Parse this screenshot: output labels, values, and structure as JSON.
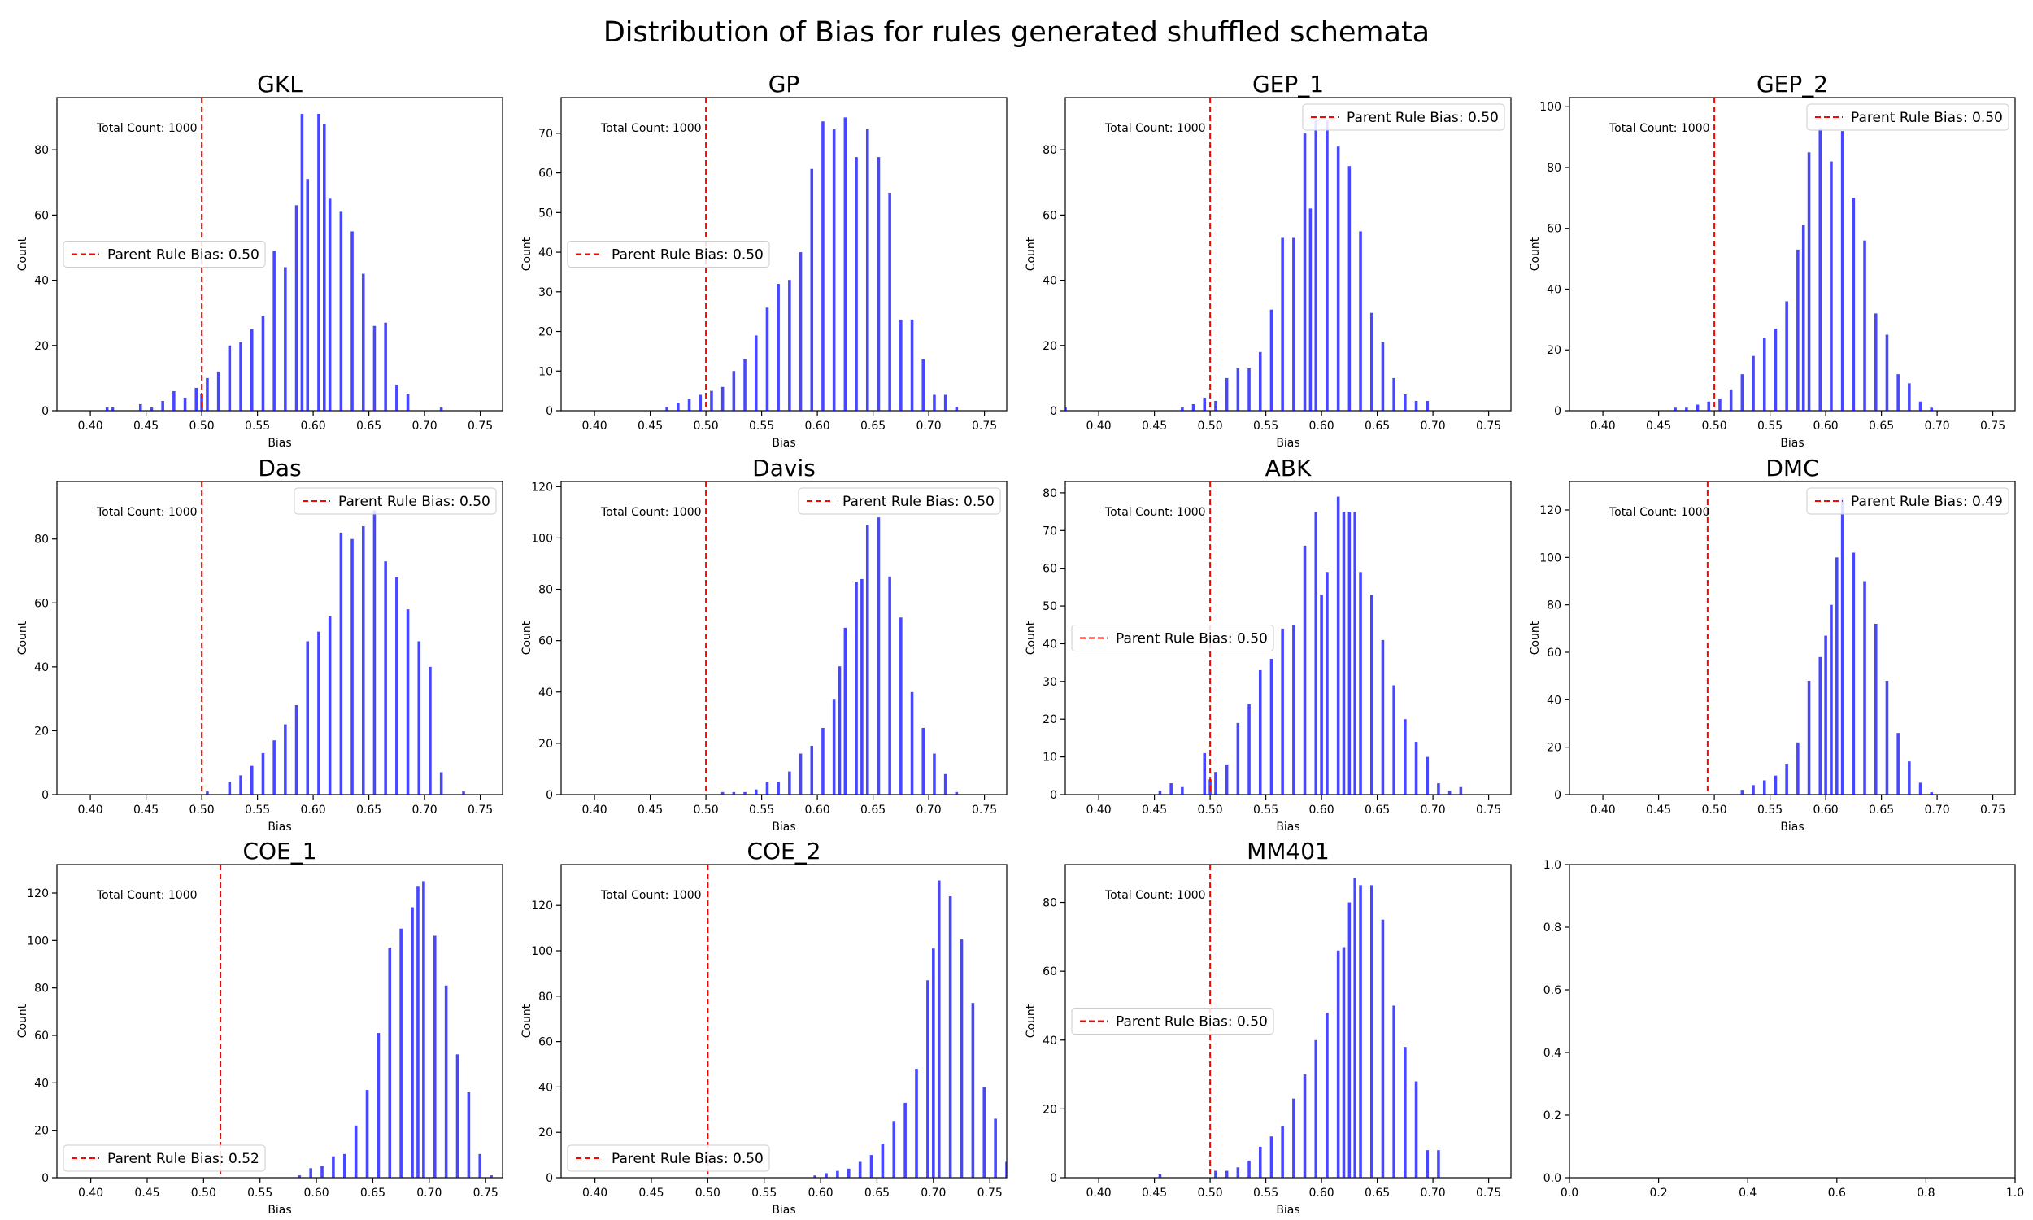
{
  "figure": {
    "title": "Distribution of Bias for rules generated shuffled schemata"
  },
  "chart_data": [
    {
      "type": "bar",
      "title": "GKL",
      "xlabel": "Bias",
      "ylabel": "Count",
      "xlim": [
        0.37,
        0.77
      ],
      "ylim": [
        0,
        96
      ],
      "xticks": [
        0.4,
        0.45,
        0.5,
        0.55,
        0.6,
        0.65,
        0.7,
        0.75
      ],
      "yticks": [
        0,
        20,
        40,
        60,
        80
      ],
      "annotation": "Total Count: 1000",
      "legend": {
        "label": "Parent Rule Bias: 0.50",
        "placement": "center-left"
      },
      "parent_bias": 0.5,
      "bar_color": "#0000ff",
      "x": [
        0.415,
        0.42,
        0.445,
        0.455,
        0.465,
        0.475,
        0.485,
        0.495,
        0.5,
        0.505,
        0.515,
        0.525,
        0.535,
        0.545,
        0.555,
        0.565,
        0.575,
        0.585,
        0.59,
        0.595,
        0.605,
        0.61,
        0.615,
        0.625,
        0.635,
        0.645,
        0.655,
        0.665,
        0.675,
        0.685,
        0.715
      ],
      "values": [
        1,
        1,
        2,
        1,
        3,
        6,
        4,
        7,
        5,
        10,
        12,
        20,
        21,
        25,
        29,
        49,
        44,
        63,
        91,
        71,
        91,
        88,
        65,
        61,
        55,
        42,
        26,
        27,
        8,
        5,
        1
      ]
    },
    {
      "type": "bar",
      "title": "GP",
      "xlabel": "Bias",
      "ylabel": "Count",
      "xlim": [
        0.37,
        0.77
      ],
      "ylim": [
        0,
        79
      ],
      "xticks": [
        0.4,
        0.45,
        0.5,
        0.55,
        0.6,
        0.65,
        0.7,
        0.75
      ],
      "yticks": [
        0,
        10,
        20,
        30,
        40,
        50,
        60,
        70
      ],
      "annotation": "Total Count: 1000",
      "legend": {
        "label": "Parent Rule Bias: 0.50",
        "placement": "center-left"
      },
      "parent_bias": 0.5,
      "bar_color": "#0000ff",
      "x": [
        0.465,
        0.475,
        0.485,
        0.495,
        0.505,
        0.515,
        0.525,
        0.535,
        0.545,
        0.555,
        0.565,
        0.575,
        0.585,
        0.595,
        0.605,
        0.615,
        0.625,
        0.635,
        0.645,
        0.655,
        0.665,
        0.675,
        0.685,
        0.695,
        0.705,
        0.715,
        0.725
      ],
      "values": [
        1,
        2,
        3,
        4,
        5,
        6,
        10,
        13,
        19,
        26,
        32,
        33,
        40,
        61,
        73,
        71,
        74,
        64,
        71,
        64,
        55,
        23,
        23,
        13,
        4,
        4,
        1
      ]
    },
    {
      "type": "bar",
      "title": "GEP_1",
      "xlabel": "Bias",
      "ylabel": "Count",
      "xlim": [
        0.37,
        0.77
      ],
      "ylim": [
        0,
        96
      ],
      "xticks": [
        0.4,
        0.45,
        0.5,
        0.55,
        0.6,
        0.65,
        0.7,
        0.75
      ],
      "yticks": [
        0,
        20,
        40,
        60,
        80
      ],
      "annotation": "Total Count: 1000",
      "legend": {
        "label": "Parent Rule Bias: 0.50",
        "placement": "upper-right"
      },
      "parent_bias": 0.5,
      "bar_color": "#0000ff",
      "x": [
        0.37,
        0.475,
        0.485,
        0.495,
        0.505,
        0.515,
        0.525,
        0.535,
        0.545,
        0.555,
        0.565,
        0.575,
        0.585,
        0.59,
        0.595,
        0.605,
        0.615,
        0.625,
        0.635,
        0.645,
        0.655,
        0.665,
        0.675,
        0.685,
        0.695
      ],
      "values": [
        1,
        1,
        2,
        4,
        3,
        10,
        13,
        13,
        18,
        31,
        53,
        53,
        85,
        62,
        89,
        89,
        81,
        75,
        55,
        30,
        21,
        10,
        5,
        3,
        3
      ]
    },
    {
      "type": "bar",
      "title": "GEP_2",
      "xlabel": "Bias",
      "ylabel": "Count",
      "xlim": [
        0.37,
        0.77
      ],
      "ylim": [
        0,
        103
      ],
      "xticks": [
        0.4,
        0.45,
        0.5,
        0.55,
        0.6,
        0.65,
        0.7,
        0.75
      ],
      "yticks": [
        0,
        20,
        40,
        60,
        80,
        100
      ],
      "annotation": "Total Count: 1000",
      "legend": {
        "label": "Parent Rule Bias: 0.50",
        "placement": "upper-right"
      },
      "parent_bias": 0.5,
      "bar_color": "#0000ff",
      "x": [
        0.465,
        0.475,
        0.485,
        0.495,
        0.505,
        0.515,
        0.525,
        0.535,
        0.545,
        0.555,
        0.565,
        0.575,
        0.58,
        0.585,
        0.595,
        0.605,
        0.615,
        0.625,
        0.635,
        0.645,
        0.655,
        0.665,
        0.675,
        0.685,
        0.695
      ],
      "values": [
        1,
        1,
        2,
        3,
        4,
        7,
        12,
        18,
        24,
        27,
        36,
        53,
        61,
        85,
        93,
        82,
        92,
        70,
        56,
        32,
        25,
        12,
        9,
        3,
        1
      ]
    },
    {
      "type": "bar",
      "title": "Das",
      "xlabel": "Bias",
      "ylabel": "Count",
      "xlim": [
        0.37,
        0.77
      ],
      "ylim": [
        0,
        98
      ],
      "xticks": [
        0.4,
        0.45,
        0.5,
        0.55,
        0.6,
        0.65,
        0.7,
        0.75
      ],
      "yticks": [
        0,
        20,
        40,
        60,
        80
      ],
      "annotation": "Total Count: 1000",
      "legend": {
        "label": "Parent Rule Bias: 0.50",
        "placement": "upper-right"
      },
      "parent_bias": 0.5,
      "bar_color": "#0000ff",
      "x": [
        0.505,
        0.525,
        0.535,
        0.545,
        0.555,
        0.565,
        0.575,
        0.585,
        0.595,
        0.605,
        0.615,
        0.625,
        0.635,
        0.645,
        0.655,
        0.665,
        0.675,
        0.685,
        0.695,
        0.705,
        0.715,
        0.735
      ],
      "values": [
        1,
        4,
        6,
        9,
        13,
        17,
        22,
        28,
        48,
        51,
        56,
        82,
        80,
        84,
        89,
        73,
        68,
        58,
        48,
        40,
        7,
        1
      ]
    },
    {
      "type": "bar",
      "title": "Davis",
      "xlabel": "Bias",
      "ylabel": "Count",
      "xlim": [
        0.37,
        0.77
      ],
      "ylim": [
        0,
        122
      ],
      "xticks": [
        0.4,
        0.45,
        0.5,
        0.55,
        0.6,
        0.65,
        0.7,
        0.75
      ],
      "yticks": [
        0,
        20,
        40,
        60,
        80,
        100,
        120
      ],
      "annotation": "Total Count: 1000",
      "legend": {
        "label": "Parent Rule Bias: 0.50",
        "placement": "upper-right"
      },
      "parent_bias": 0.5,
      "bar_color": "#0000ff",
      "x": [
        0.515,
        0.525,
        0.535,
        0.545,
        0.555,
        0.565,
        0.575,
        0.585,
        0.595,
        0.605,
        0.615,
        0.62,
        0.625,
        0.635,
        0.64,
        0.645,
        0.655,
        0.665,
        0.675,
        0.685,
        0.695,
        0.705,
        0.715,
        0.725
      ],
      "values": [
        1,
        1,
        1,
        2,
        5,
        5,
        9,
        16,
        19,
        26,
        37,
        50,
        65,
        83,
        84,
        105,
        108,
        85,
        69,
        40,
        26,
        16,
        8,
        1
      ]
    },
    {
      "type": "bar",
      "title": "ABK",
      "xlabel": "Bias",
      "ylabel": "Count",
      "xlim": [
        0.37,
        0.77
      ],
      "ylim": [
        0,
        83
      ],
      "xticks": [
        0.4,
        0.45,
        0.5,
        0.55,
        0.6,
        0.65,
        0.7,
        0.75
      ],
      "yticks": [
        0,
        10,
        20,
        30,
        40,
        50,
        60,
        70,
        80
      ],
      "annotation": "Total Count: 1000",
      "legend": {
        "label": "Parent Rule Bias: 0.50",
        "placement": "center-left"
      },
      "parent_bias": 0.5,
      "bar_color": "#0000ff",
      "x": [
        0.455,
        0.465,
        0.475,
        0.495,
        0.5,
        0.505,
        0.515,
        0.525,
        0.535,
        0.545,
        0.555,
        0.565,
        0.575,
        0.585,
        0.595,
        0.6,
        0.605,
        0.615,
        0.62,
        0.625,
        0.63,
        0.635,
        0.645,
        0.655,
        0.665,
        0.675,
        0.685,
        0.695,
        0.705,
        0.715,
        0.725
      ],
      "values": [
        1,
        3,
        2,
        11,
        4,
        6,
        8,
        19,
        24,
        33,
        36,
        44,
        45,
        66,
        75,
        53,
        59,
        79,
        75,
        75,
        75,
        59,
        53,
        41,
        29,
        20,
        14,
        10,
        3,
        1,
        2
      ]
    },
    {
      "type": "bar",
      "title": "DMC",
      "xlabel": "Bias",
      "ylabel": "Count",
      "xlim": [
        0.37,
        0.77
      ],
      "ylim": [
        0,
        132
      ],
      "xticks": [
        0.4,
        0.45,
        0.5,
        0.55,
        0.6,
        0.65,
        0.7,
        0.75
      ],
      "yticks": [
        0,
        20,
        40,
        60,
        80,
        100,
        120
      ],
      "annotation": "Total Count: 1000",
      "legend": {
        "label": "Parent Rule Bias: 0.49",
        "placement": "upper-right"
      },
      "parent_bias": 0.494,
      "bar_color": "#0000ff",
      "x": [
        0.525,
        0.535,
        0.545,
        0.555,
        0.565,
        0.575,
        0.585,
        0.595,
        0.6,
        0.605,
        0.61,
        0.615,
        0.625,
        0.635,
        0.645,
        0.655,
        0.665,
        0.675,
        0.685,
        0.695
      ],
      "values": [
        2,
        4,
        6,
        8,
        13,
        22,
        48,
        58,
        67,
        80,
        100,
        125,
        102,
        90,
        72,
        48,
        26,
        14,
        5,
        1
      ]
    },
    {
      "type": "bar",
      "title": "COE_1",
      "xlabel": "Bias",
      "ylabel": "Count",
      "xlim": [
        0.37,
        0.765
      ],
      "ylim": [
        0,
        132
      ],
      "xticks": [
        0.4,
        0.45,
        0.5,
        0.55,
        0.6,
        0.65,
        0.7,
        0.75
      ],
      "yticks": [
        0,
        20,
        40,
        60,
        80,
        100,
        120
      ],
      "annotation": "Total Count: 1000",
      "legend": {
        "label": "Parent Rule Bias: 0.52",
        "placement": "lower-left"
      },
      "parent_bias": 0.515,
      "bar_color": "#0000ff",
      "x": [
        0.585,
        0.595,
        0.605,
        0.615,
        0.625,
        0.635,
        0.645,
        0.655,
        0.665,
        0.675,
        0.685,
        0.69,
        0.695,
        0.705,
        0.715,
        0.725,
        0.735,
        0.745,
        0.755
      ],
      "values": [
        1,
        4,
        5,
        9,
        10,
        22,
        37,
        61,
        97,
        105,
        114,
        123,
        125,
        102,
        81,
        52,
        36,
        10,
        1
      ]
    },
    {
      "type": "bar",
      "title": "COE_2",
      "xlabel": "Bias",
      "ylabel": "Count",
      "xlim": [
        0.37,
        0.765
      ],
      "ylim": [
        0,
        138
      ],
      "xticks": [
        0.4,
        0.45,
        0.5,
        0.55,
        0.6,
        0.65,
        0.7,
        0.75
      ],
      "yticks": [
        0,
        20,
        40,
        60,
        80,
        100,
        120
      ],
      "annotation": "Total Count: 1000",
      "legend": {
        "label": "Parent Rule Bias: 0.50",
        "placement": "lower-left"
      },
      "parent_bias": 0.5,
      "bar_color": "#0000ff",
      "x": [
        0.595,
        0.605,
        0.615,
        0.625,
        0.635,
        0.645,
        0.655,
        0.665,
        0.675,
        0.685,
        0.695,
        0.7,
        0.705,
        0.715,
        0.725,
        0.735,
        0.745,
        0.755,
        0.765
      ],
      "values": [
        1,
        2,
        3,
        4,
        7,
        10,
        15,
        25,
        33,
        48,
        87,
        101,
        131,
        124,
        105,
        77,
        40,
        26,
        7
      ]
    },
    {
      "type": "bar",
      "title": "MM401",
      "xlabel": "Bias",
      "ylabel": "Count",
      "xlim": [
        0.37,
        0.77
      ],
      "ylim": [
        0,
        91
      ],
      "xticks": [
        0.4,
        0.45,
        0.5,
        0.55,
        0.6,
        0.65,
        0.7,
        0.75
      ],
      "yticks": [
        0,
        20,
        40,
        60,
        80
      ],
      "annotation": "Total Count: 1000",
      "legend": {
        "label": "Parent Rule Bias: 0.50",
        "placement": "center-left"
      },
      "parent_bias": 0.5,
      "bar_color": "#0000ff",
      "x": [
        0.455,
        0.505,
        0.515,
        0.525,
        0.535,
        0.545,
        0.555,
        0.565,
        0.575,
        0.585,
        0.595,
        0.605,
        0.615,
        0.62,
        0.625,
        0.63,
        0.635,
        0.645,
        0.655,
        0.665,
        0.675,
        0.685,
        0.695,
        0.705
      ],
      "values": [
        1,
        2,
        2,
        3,
        5,
        9,
        12,
        15,
        23,
        30,
        40,
        48,
        66,
        67,
        80,
        87,
        85,
        85,
        75,
        50,
        38,
        28,
        8,
        8
      ]
    },
    {
      "type": "bar",
      "title": "",
      "xlabel": "",
      "ylabel": "",
      "xlim": [
        0,
        1
      ],
      "ylim": [
        0,
        1
      ],
      "xticks": [
        "0.0",
        "0.2",
        "0.4",
        "0.6",
        "0.8",
        "1.0"
      ],
      "yticks": [
        "0.0",
        "0.2",
        "0.4",
        "0.6",
        "0.8",
        "1.0"
      ],
      "empty": true
    }
  ]
}
